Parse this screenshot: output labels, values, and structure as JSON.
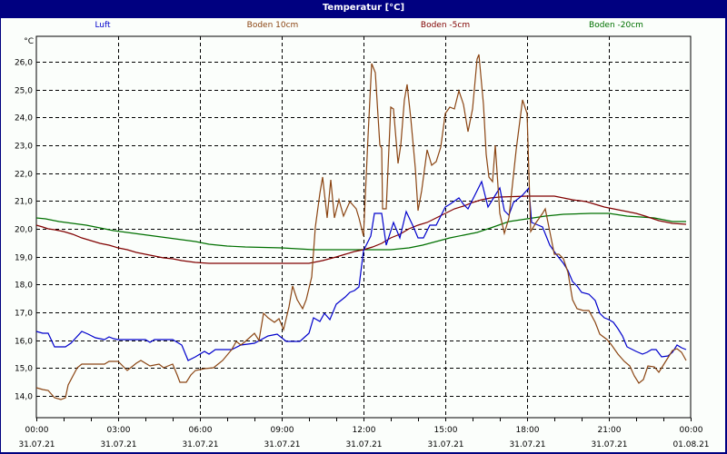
{
  "window": {
    "title": "Temperatur [°C]"
  },
  "colors": {
    "titlebar": "#000080",
    "Luft": "#0000cc",
    "Boden10": "#8b4513",
    "BodenM5": "#800000",
    "BodenM20": "#007000"
  },
  "legend": [
    {
      "label": "Luft",
      "color": "#0000cc"
    },
    {
      "label": "Boden 10cm",
      "color": "#8b4513"
    },
    {
      "label": "Boden -5cm",
      "color": "#800000"
    },
    {
      "label": "Boden -20cm",
      "color": "#007000"
    }
  ],
  "yaxis": {
    "unit": "°C",
    "ticks": [
      "26,0",
      "25,0",
      "24,0",
      "23,0",
      "22,0",
      "21,0",
      "20,0",
      "19,0",
      "18,0",
      "17,0",
      "16,0",
      "15,0",
      "14,0"
    ]
  },
  "xaxis": {
    "times": [
      "00:00",
      "03:00",
      "06:00",
      "09:00",
      "12:00",
      "15:00",
      "18:00",
      "21:00",
      "00:00"
    ],
    "dates": [
      "31.07.21",
      "31.07.21",
      "31.07.21",
      "31.07.21",
      "31.07.21",
      "31.07.21",
      "31.07.21",
      "31.07.21",
      "01.08.21"
    ]
  },
  "chart_data": {
    "type": "line",
    "title": "Temperatur [°C]",
    "xlabel": "",
    "ylabel": "°C",
    "ylim": [
      13.3,
      26.9
    ],
    "x": [
      "00:00",
      "01:00",
      "02:00",
      "03:00",
      "04:00",
      "05:00",
      "06:00",
      "07:00",
      "08:00",
      "09:00",
      "10:00",
      "11:00",
      "12:00",
      "13:00",
      "14:00",
      "15:00",
      "16:00",
      "17:00",
      "18:00",
      "19:00",
      "20:00",
      "21:00",
      "22:00",
      "23:00",
      "24:00"
    ],
    "grid": true,
    "legend_position": "top",
    "series": [
      {
        "name": "Luft",
        "values": [
          16.3,
          16.0,
          16.2,
          16.1,
          16.1,
          16.0,
          15.5,
          15.7,
          15.9,
          16.4,
          16.8,
          17.4,
          19.3,
          20.2,
          20.3,
          20.8,
          21.3,
          20.4,
          21.1,
          19.4,
          17.3,
          16.5,
          15.7,
          15.6,
          15.8
        ]
      },
      {
        "name": "Boden 10cm",
        "values": [
          14.3,
          13.9,
          15.2,
          15.2,
          15.1,
          15.2,
          14.5,
          15.0,
          15.9,
          16.4,
          18.0,
          21.2,
          21.0,
          24.8,
          21.2,
          24.3,
          25.5,
          21.8,
          24.2,
          18.7,
          17.1,
          15.9,
          14.6,
          15.1,
          15.3
        ]
      },
      {
        "name": "Boden -5cm",
        "values": [
          20.2,
          19.9,
          19.6,
          19.4,
          19.2,
          19.0,
          18.9,
          18.8,
          18.8,
          18.8,
          18.8,
          19.0,
          19.5,
          19.9,
          20.2,
          20.6,
          21.0,
          21.2,
          21.2,
          21.1,
          20.9,
          20.7,
          20.5,
          20.3,
          20.2
        ]
      },
      {
        "name": "Boden -20cm",
        "values": [
          20.4,
          20.3,
          20.1,
          20.0,
          19.9,
          19.8,
          19.7,
          19.6,
          19.4,
          19.4,
          19.3,
          19.3,
          19.3,
          19.5,
          19.7,
          19.9,
          20.1,
          20.3,
          20.4,
          20.5,
          20.6,
          20.6,
          20.5,
          20.4,
          20.3
        ]
      }
    ]
  }
}
